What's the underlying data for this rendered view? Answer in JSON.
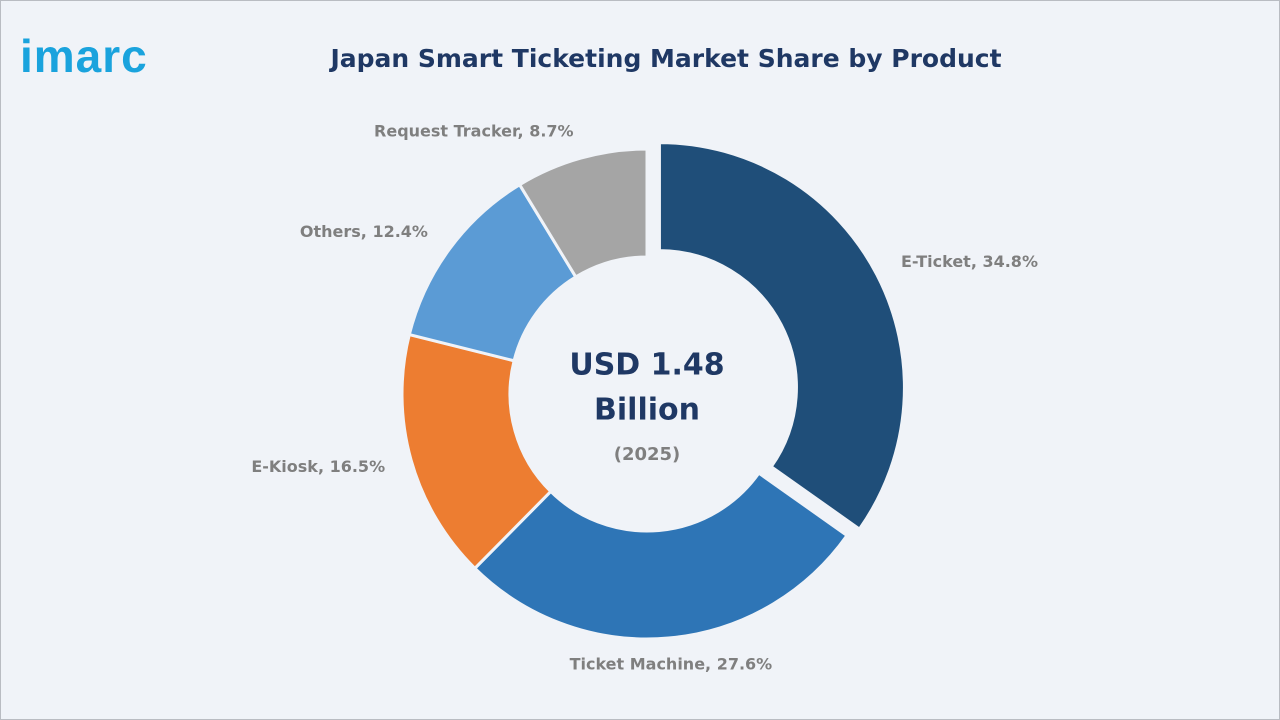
{
  "logo": "imarc",
  "chart_data": {
    "type": "donut",
    "title": "Japan Smart Ticketing Market Share by Product",
    "values": [
      34.8,
      27.6,
      16.5,
      12.4,
      8.7
    ],
    "value_labels": [
      "E-Ticket, 34.8%",
      "Ticket Machine, 27.6%",
      "E-Kiosk, 16.5%",
      "Others, 12.4%",
      "Request Tracker, 8.7%"
    ],
    "colors": [
      "#1f4e79",
      "#2e75b6",
      "#ed7d31",
      "#5b9bd5",
      "#a5a5a5"
    ],
    "explode": [
      true,
      false,
      false,
      false,
      false
    ],
    "center_lines": [
      "USD 1.48",
      "Billion"
    ],
    "center_subtitle": "(2025)"
  }
}
